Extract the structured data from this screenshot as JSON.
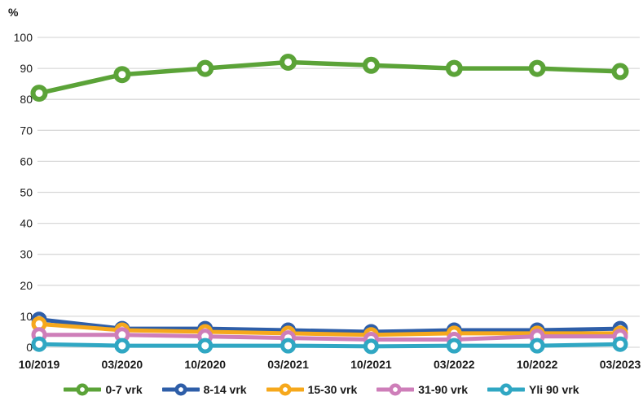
{
  "chart_data": {
    "type": "line",
    "title": "",
    "ylabel": "%",
    "xlabel": "",
    "ylim": [
      0,
      100
    ],
    "ytick_step": 10,
    "grid": true,
    "gridline_color": "#d9d9d9",
    "axis_text_color": "#1a1a1a",
    "legend_position": "bottom",
    "categories": [
      "10/2019",
      "03/2020",
      "10/2020",
      "03/2021",
      "10/2021",
      "03/2022",
      "10/2022",
      "03/2023"
    ],
    "series": [
      {
        "name": "0-7 vrk",
        "color": "#5ba338",
        "values": [
          82,
          88,
          90,
          92,
          91,
          90,
          90,
          89
        ]
      },
      {
        "name": "8-14 vrk",
        "color": "#2e5ea8",
        "values": [
          9,
          6,
          6,
          5.5,
          5,
          5.5,
          5.5,
          6
        ]
      },
      {
        "name": "15-30 vrk",
        "color": "#f6a81c",
        "values": [
          7.5,
          5.5,
          5,
          4.5,
          4,
          4.5,
          4.5,
          4.5
        ]
      },
      {
        "name": "31-90 vrk",
        "color": "#ce7eb9",
        "values": [
          4,
          4,
          3.5,
          3,
          2.5,
          2.5,
          3.5,
          3.5
        ]
      },
      {
        "name": "Yli 90 vrk",
        "color": "#30a7c3",
        "values": [
          1,
          0.5,
          0.5,
          0.5,
          0.3,
          0.5,
          0.5,
          1
        ]
      }
    ]
  }
}
